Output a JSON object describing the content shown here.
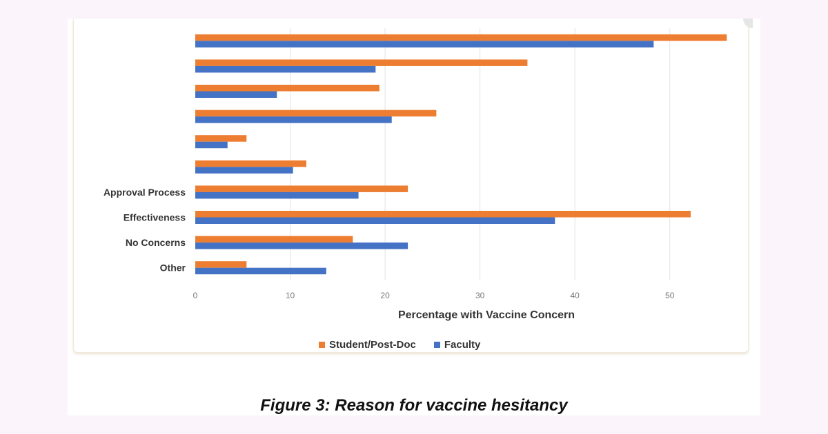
{
  "chart_data": {
    "type": "bar",
    "orientation": "horizontal",
    "categories": [
      "",
      "",
      "",
      "",
      "",
      "",
      "Approval Process",
      "Effectiveness",
      "No Concerns",
      "Other"
    ],
    "series": [
      {
        "name": "Student/Post-Doc",
        "color": "#ed7d31",
        "values": [
          56,
          35,
          19.4,
          25.4,
          5.4,
          11.7,
          22.4,
          52.2,
          16.6,
          5.4
        ]
      },
      {
        "name": "Faculty",
        "color": "#4472c4",
        "values": [
          48.3,
          19,
          8.6,
          20.7,
          3.4,
          10.3,
          17.2,
          37.9,
          22.4,
          13.8
        ]
      }
    ],
    "xlabel": "Percentage with Vaccine Concern",
    "ylabel": "",
    "xlim": [
      0,
      57
    ],
    "xticks": [
      0,
      10,
      20,
      30,
      40,
      50
    ],
    "grid": true,
    "legend_position": "bottom"
  },
  "caption": "Figure 3: Reason for vaccine hesitancy"
}
